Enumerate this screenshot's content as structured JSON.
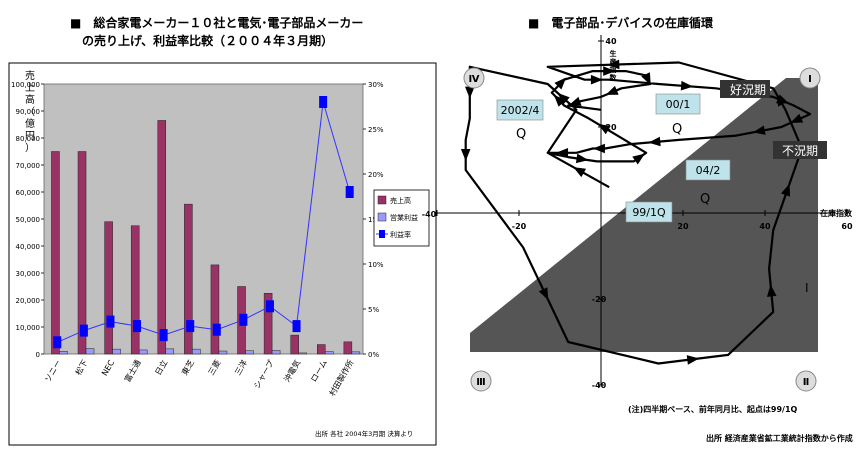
{
  "left_title_line1": "■　総合家電メーカー１０社と電気･電子部品メーカー",
  "left_title_line2": "　の売り上げ、利益率比較（２００４年３月期）",
  "right_title": "■　電子部品･デバイスの在庫循環",
  "colors": {
    "plot_bg": "#c0c0c0",
    "sales": "#993366",
    "op_profit": "#9999ff",
    "margin_line": "#3333ff",
    "margin_marker": "#0000ff",
    "cycle_shade": "#555555",
    "label_box": "#bfe3ea"
  },
  "chart_data": [
    {
      "type": "bar",
      "ylabel_left": "売上高（億円）",
      "ylim_left": [
        0,
        100000
      ],
      "ylim_right": [
        0,
        30
      ],
      "left_ticks": [
        "0",
        "10,000",
        "20,000",
        "30,000",
        "40,000",
        "50,000",
        "60,000",
        "70,000",
        "80,000",
        "90,000",
        "100,000"
      ],
      "right_ticks": [
        "0%",
        "5%",
        "10%",
        "15%",
        "20%",
        "25%",
        "30%"
      ],
      "categories": [
        "ソニー",
        "松下",
        "NEC",
        "富士通",
        "日立",
        "東芝",
        "三菱",
        "三洋",
        "シャープ",
        "沖電気",
        "ローム",
        "村田製作所"
      ],
      "series": [
        {
          "name": "売上高",
          "kind": "bar",
          "axis": "left",
          "values": [
            75000,
            75000,
            49000,
            47500,
            86500,
            55500,
            33000,
            25000,
            22500,
            7000,
            3500,
            4500
          ]
        },
        {
          "name": "営業利益",
          "kind": "bar",
          "axis": "left",
          "values": [
            1000,
            2000,
            1800,
            1500,
            1900,
            1800,
            1100,
            1200,
            1300,
            400,
            900,
            800
          ]
        },
        {
          "name": "利益率",
          "kind": "line",
          "axis": "right",
          "values": [
            1.3,
            2.6,
            3.6,
            3.1,
            2.1,
            3.1,
            2.7,
            3.8,
            5.3,
            3.1,
            28,
            18
          ]
        }
      ],
      "legend": {
        "placement": "right",
        "entries": [
          "売上高",
          "営業利益",
          "利益率"
        ]
      },
      "source_note": "出所  各社 2004年3月期 決算より"
    },
    {
      "type": "line",
      "xlabel": "在庫指数",
      "ylabel": "生産指数",
      "xlim": [
        -40,
        60
      ],
      "ylim": [
        -40,
        40
      ],
      "x_ticks": [
        "-40",
        "-20",
        "20",
        "40",
        "60"
      ],
      "y_ticks": [
        "40",
        "20",
        "-20",
        "-40"
      ],
      "series": [
        {
          "x": [
            2,
            -13,
            -6,
            -13,
            -32,
            -32,
            -33,
            -33,
            -19,
            -8,
            14,
            31,
            42,
            41,
            42,
            49,
            45,
            42,
            19,
            -13,
            -4,
            2,
            14,
            28,
            42,
            47,
            51,
            44,
            44,
            33,
            19,
            7,
            1,
            -2,
            -6,
            -13,
            -8,
            -1,
            8,
            11,
            4,
            -3,
            -9,
            -12,
            -10,
            -9,
            -2,
            6,
            11,
            12,
            5,
            0,
            -5,
            -8,
            0
          ],
          "y": [
            6,
            14,
            24,
            30,
            34,
            22,
            17,
            10,
            -8,
            -30,
            -35,
            -33,
            -23,
            -13,
            -4,
            15,
            24,
            29,
            35,
            34,
            31,
            31,
            30,
            29,
            27,
            25,
            23,
            20,
            20,
            18,
            17,
            16,
            15,
            15,
            14,
            14,
            13,
            12,
            12,
            14,
            18,
            22,
            25,
            28,
            30,
            31,
            33,
            33,
            32,
            30,
            29,
            27,
            26,
            25,
            24
          ]
        }
      ],
      "labels": [
        "2002/4",
        "Q",
        "00/1",
        "Q",
        "04/2",
        "Q",
        "99/1Q",
        "好況期",
        "不況期"
      ],
      "quadrants": [
        "Ⅳ",
        "Ⅰ",
        "Ⅲ",
        "Ⅱ",
        "Ⅰ"
      ],
      "note": "(注)四半期ベース、前年同月比、起点は99/1Q",
      "source": "出所  経済産業省鉱工業統計指数から作成"
    }
  ]
}
